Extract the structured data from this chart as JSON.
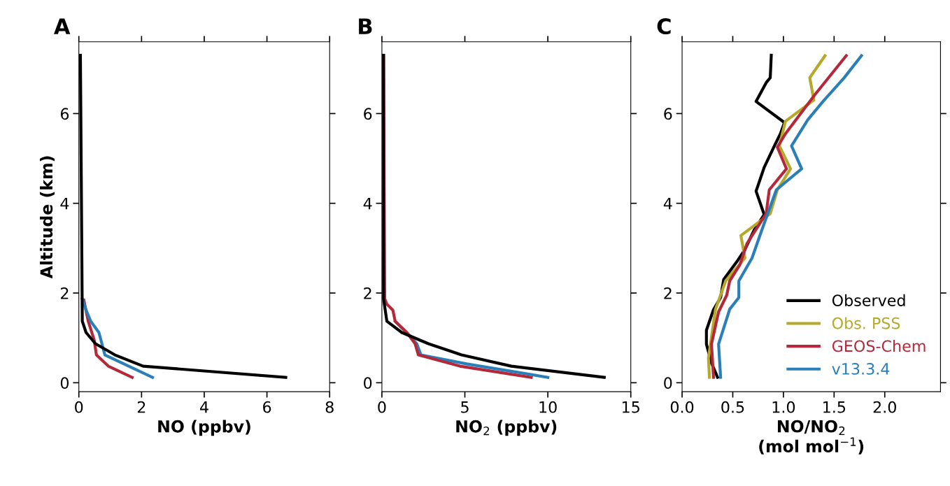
{
  "chart_data": [
    {
      "type": "line",
      "title": "A",
      "xlabel": "NO (ppbv)",
      "ylabel": "Altitude (km)",
      "xlim": [
        0,
        8
      ],
      "xticks": [
        0,
        2,
        4,
        6,
        8
      ],
      "ylim": [
        -0.2,
        7.6
      ],
      "yticks": [
        0,
        2,
        4,
        6
      ],
      "grid": false,
      "legend": false,
      "series": [
        {
          "color": "#b5283a",
          "x": [
            1.7,
            0.94,
            0.56,
            0.49,
            0.3,
            0.16
          ],
          "values": [
            0.12,
            0.37,
            0.62,
            0.95,
            1.37,
            1.84
          ]
        },
        {
          "color": "#2a7fb8",
          "x": [
            2.35,
            0.83,
            0.64,
            0.38,
            0.23,
            0.11
          ],
          "values": [
            0.12,
            0.62,
            1.12,
            1.37,
            1.62,
            1.87
          ]
        },
        {
          "color": "#000000",
          "x": [
            6.6,
            2.05,
            1.15,
            0.53,
            0.23,
            0.11,
            0.05
          ],
          "values": [
            0.12,
            0.37,
            0.62,
            0.87,
            1.12,
            1.37,
            7.3
          ]
        }
      ]
    },
    {
      "type": "line",
      "title": "B",
      "xlabel": "NO$_{2}$ (ppbv)",
      "xlim": [
        0,
        15
      ],
      "xticks": [
        0,
        5,
        10,
        15
      ],
      "ylim": [
        -0.2,
        7.6
      ],
      "yticks": [
        0,
        2,
        4,
        6
      ],
      "grid": false,
      "legend": false,
      "series": [
        {
          "color": "#2a7fb8",
          "x": [
            10.0,
            5.1,
            2.35,
            2.1,
            1.5,
            0.8
          ],
          "values": [
            0.12,
            0.42,
            0.62,
            0.87,
            1.12,
            1.37
          ]
        },
        {
          "color": "#b5283a",
          "x": [
            9.0,
            4.7,
            2.2,
            2.0,
            1.5,
            0.8,
            0.66,
            0.3,
            0.17,
            0.1
          ],
          "values": [
            0.12,
            0.37,
            0.62,
            0.87,
            1.12,
            1.37,
            1.62,
            1.75,
            1.87,
            7.3
          ]
        },
        {
          "color": "#000000",
          "x": [
            13.4,
            7.8,
            4.8,
            2.8,
            1.2,
            0.3,
            0.1,
            0.1
          ],
          "values": [
            0.12,
            0.37,
            0.62,
            0.87,
            1.12,
            1.37,
            1.87,
            7.3
          ]
        }
      ]
    },
    {
      "type": "line",
      "title": "C",
      "xlabel": "NO/NO$_{2}$\n(mol mol$^{−1}$)",
      "xlim": [
        0,
        2.55
      ],
      "xticks": [
        {
          "value": 0,
          "label": "0.0"
        },
        {
          "value": 0.5,
          "label": "0.5"
        },
        {
          "value": 1,
          "label": "1.0"
        },
        {
          "value": 1.5,
          "label": "1.5"
        },
        {
          "value": 2,
          "label": "2.0"
        }
      ],
      "ylim": [
        -0.2,
        7.6
      ],
      "yticks": [
        0,
        2,
        4,
        6
      ],
      "grid": false,
      "legend": "lower right",
      "series": [
        {
          "name": "Observed",
          "color": "#000000",
          "x": [
            0.35,
            0.29,
            0.24,
            0.24,
            0.31,
            0.38,
            0.41,
            0.55,
            0.62,
            0.71,
            0.81,
            0.73,
            0.81,
            0.9,
            0.97,
            1.01,
            0.73,
            0.83,
            0.87,
            0.88
          ],
          "values": [
            0.12,
            0.44,
            0.86,
            1.17,
            1.63,
            1.9,
            2.3,
            2.73,
            2.97,
            3.4,
            3.75,
            4.27,
            4.8,
            5.23,
            5.55,
            5.8,
            6.27,
            6.69,
            6.8,
            7.3
          ]
        },
        {
          "name": "Obs. PSS",
          "color": "#b5a82a",
          "x": [
            0.27,
            0.26,
            0.33,
            0.43,
            0.62,
            0.58,
            0.87,
            0.94,
            1.07,
            0.96,
            1.02,
            1.3,
            1.26,
            1.41
          ],
          "values": [
            0.12,
            0.55,
            1.64,
            2.27,
            2.78,
            3.28,
            3.77,
            4.3,
            4.77,
            5.28,
            5.83,
            6.3,
            6.8,
            7.29
          ]
        },
        {
          "name": "GEOS-Chem",
          "color": "#b5283a",
          "x": [
            0.31,
            0.29,
            0.36,
            0.44,
            0.47,
            0.57,
            0.64,
            0.83,
            0.86,
            1.03,
            0.94,
            1.02,
            1.31,
            1.62
          ],
          "values": [
            0.12,
            0.86,
            1.58,
            1.95,
            2.27,
            2.63,
            3.1,
            3.77,
            4.3,
            4.77,
            5.25,
            5.55,
            6.42,
            7.29
          ]
        },
        {
          "name": "v13.3.4",
          "color": "#2a7fb8",
          "x": [
            0.38,
            0.36,
            0.47,
            0.56,
            0.56,
            0.69,
            0.78,
            0.93,
            1.18,
            1.08,
            1.24,
            1.39,
            1.6,
            1.77
          ],
          "values": [
            0.12,
            0.86,
            1.64,
            1.9,
            2.27,
            2.78,
            3.36,
            4.3,
            4.77,
            5.28,
            5.86,
            6.27,
            6.8,
            7.29
          ]
        }
      ]
    }
  ]
}
